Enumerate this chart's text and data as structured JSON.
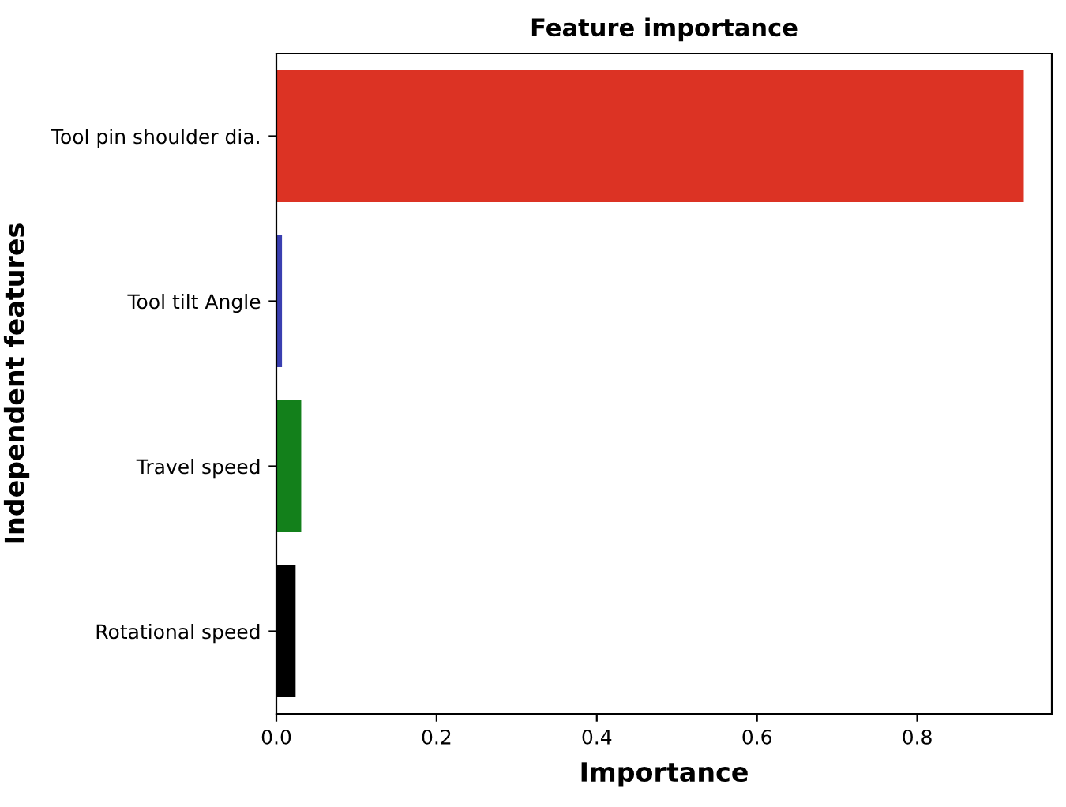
{
  "chart_data": {
    "type": "bar",
    "orientation": "horizontal",
    "title": "Feature importance",
    "xlabel": "Importance",
    "ylabel": "Independent features",
    "categories": [
      "Tool pin shoulder dia.",
      "Tool tilt Angle",
      "Travel speed",
      "Rotational speed"
    ],
    "values": [
      0.933,
      0.007,
      0.031,
      0.024
    ],
    "colors": [
      "#dc3324",
      "#3a3fb0",
      "#13801b",
      "#000000"
    ],
    "xlim": [
      0,
      0.968
    ],
    "xticks": [
      {
        "value": 0,
        "label": "0.0"
      },
      0.2,
      0.4,
      0.6,
      0.8
    ],
    "grid": false,
    "legend": false
  }
}
